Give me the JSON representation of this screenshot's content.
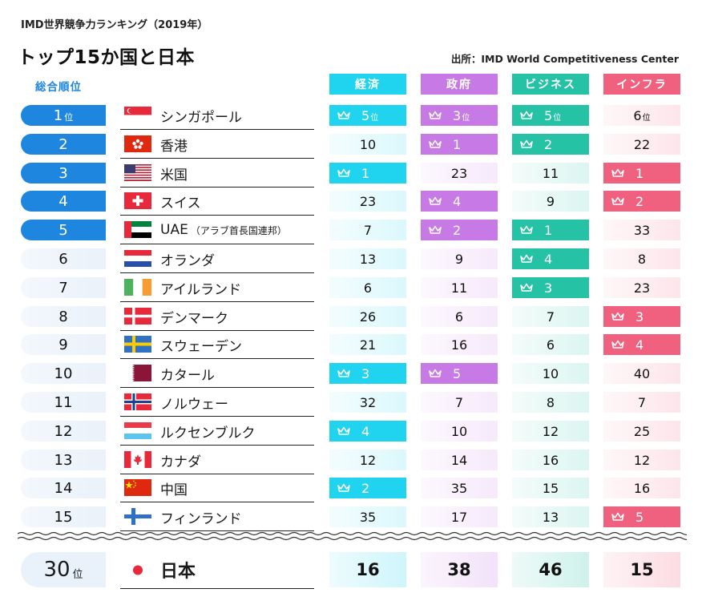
{
  "header": {
    "subtitle": "IMD世界競争力ランキング（2019年）",
    "title": "トップ15か国と日本",
    "source": "出所：IMD World Competitiveness Center",
    "rank_header": "総合順位"
  },
  "rank_suffix": "位",
  "colors": {
    "rank_top5": "#1f86e0",
    "rank_other": "#eaf1fa",
    "economy": "#20d3ee",
    "government": "#c779e6",
    "business": "#25c2a6",
    "infrastructure": "#f0607f"
  },
  "chart_data": {
    "type": "table",
    "title": "トップ15か国と日本",
    "subtitle": "IMD世界競争力ランキング（2019年）",
    "columns": [
      "経済",
      "政府",
      "ビジネス",
      "インフラ"
    ],
    "highlight_rule": "crown marks top 5 in each factor",
    "rows": [
      {
        "rank": 1,
        "country": "シンガポール",
        "flag": "singapore",
        "economy": 5,
        "government": 3,
        "business": 5,
        "infrastructure": 6
      },
      {
        "rank": 2,
        "country": "香港",
        "flag": "hongkong",
        "economy": 10,
        "government": 1,
        "business": 2,
        "infrastructure": 22
      },
      {
        "rank": 3,
        "country": "米国",
        "flag": "usa",
        "economy": 1,
        "government": 23,
        "business": 11,
        "infrastructure": 1
      },
      {
        "rank": 4,
        "country": "スイス",
        "flag": "switzerland",
        "economy": 23,
        "government": 4,
        "business": 9,
        "infrastructure": 2
      },
      {
        "rank": 5,
        "country": "UAE",
        "country_note": "（アラブ首長国連邦）",
        "flag": "uae",
        "economy": 7,
        "government": 2,
        "business": 1,
        "infrastructure": 33
      },
      {
        "rank": 6,
        "country": "オランダ",
        "flag": "netherlands",
        "economy": 13,
        "government": 9,
        "business": 4,
        "infrastructure": 8
      },
      {
        "rank": 7,
        "country": "アイルランド",
        "flag": "ireland",
        "economy": 6,
        "government": 11,
        "business": 3,
        "infrastructure": 23
      },
      {
        "rank": 8,
        "country": "デンマーク",
        "flag": "denmark",
        "economy": 26,
        "government": 6,
        "business": 7,
        "infrastructure": 3
      },
      {
        "rank": 9,
        "country": "スウェーデン",
        "flag": "sweden",
        "economy": 21,
        "government": 16,
        "business": 6,
        "infrastructure": 4
      },
      {
        "rank": 10,
        "country": "カタール",
        "flag": "qatar",
        "economy": 3,
        "government": 5,
        "business": 10,
        "infrastructure": 40
      },
      {
        "rank": 11,
        "country": "ノルウェー",
        "flag": "norway",
        "economy": 32,
        "government": 7,
        "business": 8,
        "infrastructure": 7
      },
      {
        "rank": 12,
        "country": "ルクセンブルク",
        "flag": "luxembourg",
        "economy": 4,
        "government": 10,
        "business": 12,
        "infrastructure": 25
      },
      {
        "rank": 13,
        "country": "カナダ",
        "flag": "canada",
        "economy": 12,
        "government": 14,
        "business": 16,
        "infrastructure": 12
      },
      {
        "rank": 14,
        "country": "中国",
        "flag": "china",
        "economy": 2,
        "government": 35,
        "business": 15,
        "infrastructure": 16
      },
      {
        "rank": 15,
        "country": "フィンランド",
        "flag": "finland",
        "economy": 35,
        "government": 17,
        "business": 13,
        "infrastructure": 5
      }
    ],
    "japan": {
      "rank": 30,
      "country": "日本",
      "flag": "japan",
      "economy": 16,
      "government": 38,
      "business": 46,
      "infrastructure": 15
    }
  }
}
